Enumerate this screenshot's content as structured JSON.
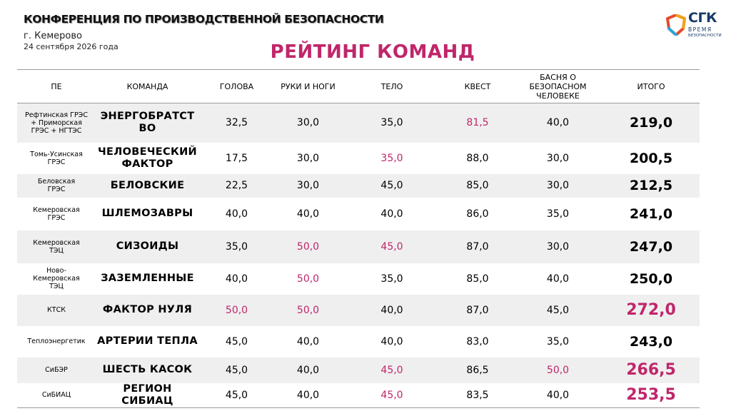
{
  "header": {
    "conference_title": "КОНФЕРЕНЦИЯ ПО ПРОИЗВОДСТВЕННОЙ БЕЗОПАСНОСТИ",
    "city": "г. Кемерово",
    "date": "24 сентября 2026 года",
    "rating_title": "РЕЙТИНГ КОМАНД"
  },
  "logo": {
    "brand": "СГК",
    "line1": "ВРЕМЯ",
    "line2": "БЕЗОПАСНОСТИ"
  },
  "colors": {
    "accent": "#c0266a",
    "stripe": "#efefef",
    "logo_blue": "#173a6b"
  },
  "table": {
    "headers": [
      "ПЕ",
      "КОМАНДА",
      "ГОЛОВА",
      "РУКИ И НОГИ",
      "ТЕЛО",
      "КВЕСТ",
      "БАСНЯ О БЕЗОПАСНОМ ЧЕЛОВЕКЕ",
      "ИТОГО"
    ],
    "rows": [
      {
        "pe": "Рефтинская ГРЭС + Приморская ГРЭС + НГТЭС",
        "team": "ЭНЕРГОБРАТСТ ВО",
        "head": "32,5",
        "limbs": "30,0",
        "body": "35,0",
        "quest": "81,5",
        "fable": "40,0",
        "total": "219,0"
      },
      {
        "pe": "Томь-Усинская ГРЭС",
        "team": "ЧЕЛОВЕЧЕСКИЙ ФАКТОР",
        "head": "17,5",
        "limbs": "30,0",
        "body": "35,0",
        "quest": "88,0",
        "fable": "30,0",
        "total": "200,5"
      },
      {
        "pe": "Беловская ГРЭС",
        "team": "БЕЛОВСКИЕ",
        "head": "22,5",
        "limbs": "30,0",
        "body": "45,0",
        "quest": "85,0",
        "fable": "30,0",
        "total": "212,5"
      },
      {
        "pe": "Кемеровская ГРЭС",
        "team": "ШЛЕМОЗАВРЫ",
        "head": "40,0",
        "limbs": "40,0",
        "body": "40,0",
        "quest": "86,0",
        "fable": "35,0",
        "total": "241,0"
      },
      {
        "pe": "Кемеровская ТЭЦ",
        "team": "СИЗОИДЫ",
        "head": "35,0",
        "limbs": "50,0",
        "body": "45,0",
        "quest": "87,0",
        "fable": "30,0",
        "total": "247,0"
      },
      {
        "pe": "Ново-Кемеровская ТЭЦ",
        "team": "ЗАЗЕМЛЕННЫЕ",
        "head": "40,0",
        "limbs": "50,0",
        "body": "35,0",
        "quest": "85,0",
        "fable": "40,0",
        "total": "250,0"
      },
      {
        "pe": "КТСК",
        "team": "ФАКТОР НУЛЯ",
        "head": "50,0",
        "limbs": "50,0",
        "body": "40,0",
        "quest": "87,0",
        "fable": "45,0",
        "total": "272,0"
      },
      {
        "pe": "Теплоэнергетик",
        "team": "АРТЕРИИ ТЕПЛА",
        "head": "45,0",
        "limbs": "40,0",
        "body": "40,0",
        "quest": "83,0",
        "fable": "35,0",
        "total": "243,0"
      },
      {
        "pe": "СиБЭР",
        "team": "ШЕСТЬ КАСОК",
        "head": "45,0",
        "limbs": "40,0",
        "body": "45,0",
        "quest": "86,5",
        "fable": "50,0",
        "total": "266,5"
      },
      {
        "pe": "СиБИАЦ",
        "team": "РЕГИОН СИБИАЦ",
        "head": "45,0",
        "limbs": "40,0",
        "body": "45,0",
        "quest": "83,5",
        "fable": "40,0",
        "total": "253,5"
      }
    ],
    "highlighted": [
      [
        "quest"
      ],
      [
        "body"
      ],
      [],
      [],
      [
        "limbs",
        "body"
      ],
      [
        "limbs"
      ],
      [
        "head",
        "limbs",
        "total"
      ],
      [],
      [
        "body",
        "fable",
        "total"
      ],
      [
        "body",
        "total"
      ]
    ]
  }
}
